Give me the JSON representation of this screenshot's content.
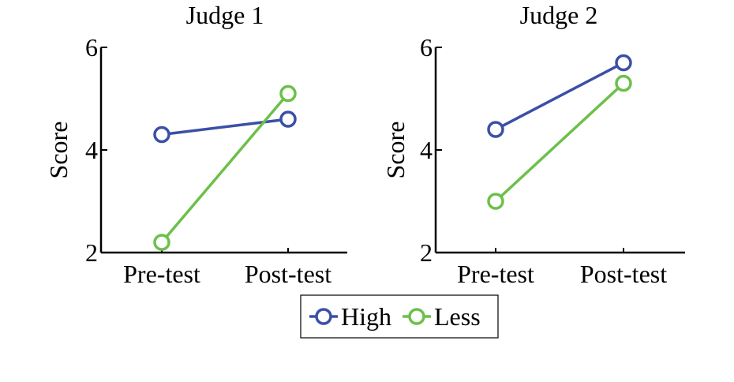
{
  "chart_data": [
    {
      "type": "line",
      "title": "Judge 1",
      "xlabel": "",
      "ylabel": "Score",
      "categories": [
        "Pre-test",
        "Post-test"
      ],
      "ylim": [
        2,
        6
      ],
      "yticks": [
        2,
        4,
        6
      ],
      "grid": false,
      "series": [
        {
          "name": "High",
          "values": [
            4.3,
            4.6
          ],
          "color": "#3b4fa6"
        },
        {
          "name": "Less",
          "values": [
            2.2,
            5.1
          ],
          "color": "#6cc04a"
        }
      ]
    },
    {
      "type": "line",
      "title": "Judge 2",
      "xlabel": "",
      "ylabel": "Score",
      "categories": [
        "Pre-test",
        "Post-test"
      ],
      "ylim": [
        2,
        6
      ],
      "yticks": [
        2,
        4,
        6
      ],
      "grid": false,
      "series": [
        {
          "name": "High",
          "values": [
            4.4,
            5.7
          ],
          "color": "#3b4fa6"
        },
        {
          "name": "Less",
          "values": [
            3.0,
            5.3
          ],
          "color": "#6cc04a"
        }
      ]
    }
  ],
  "legend": {
    "position": "bottom-center",
    "entries": [
      {
        "label": "High",
        "color": "#3b4fa6"
      },
      {
        "label": "Less",
        "color": "#6cc04a"
      }
    ]
  }
}
